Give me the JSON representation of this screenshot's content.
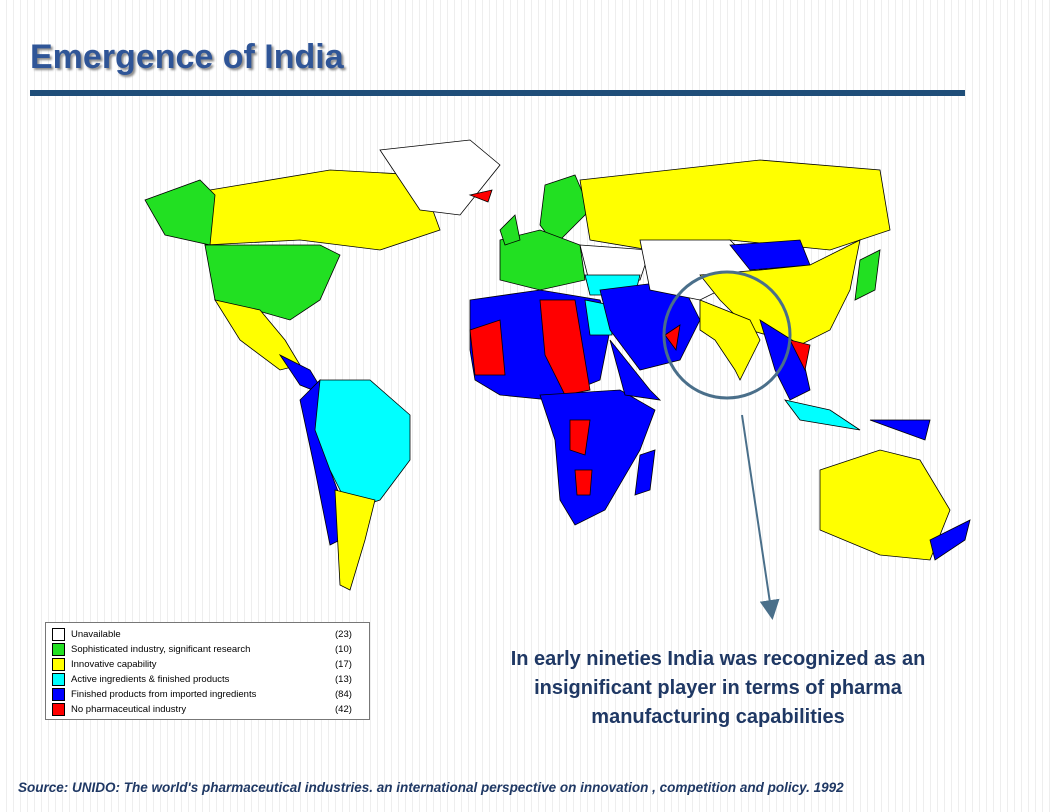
{
  "title": "Emergence of India",
  "legend": [
    {
      "label": "Unavailable",
      "count": "(23)",
      "color": "#ffffff"
    },
    {
      "label": "Sophisticated industry, significant research",
      "count": "(10)",
      "color": "#22e022"
    },
    {
      "label": "Innovative capability",
      "count": "(17)",
      "color": "#ffff00"
    },
    {
      "label": "Active ingredients & finished products",
      "count": "(13)",
      "color": "#00ffff"
    },
    {
      "label": "Finished products from imported ingredients",
      "count": "(84)",
      "color": "#0000ff"
    },
    {
      "label": "No pharmaceutical industry",
      "count": "(42)",
      "color": "#ff0000"
    }
  ],
  "callout": [
    "In early nineties India was recognized as an",
    "insignificant player in terms of pharma",
    "manufacturing capabilities"
  ],
  "source": "Source:  UNIDO: The world's pharmaceutical industries. an international perspective on innovation , competition and policy. 1992"
}
